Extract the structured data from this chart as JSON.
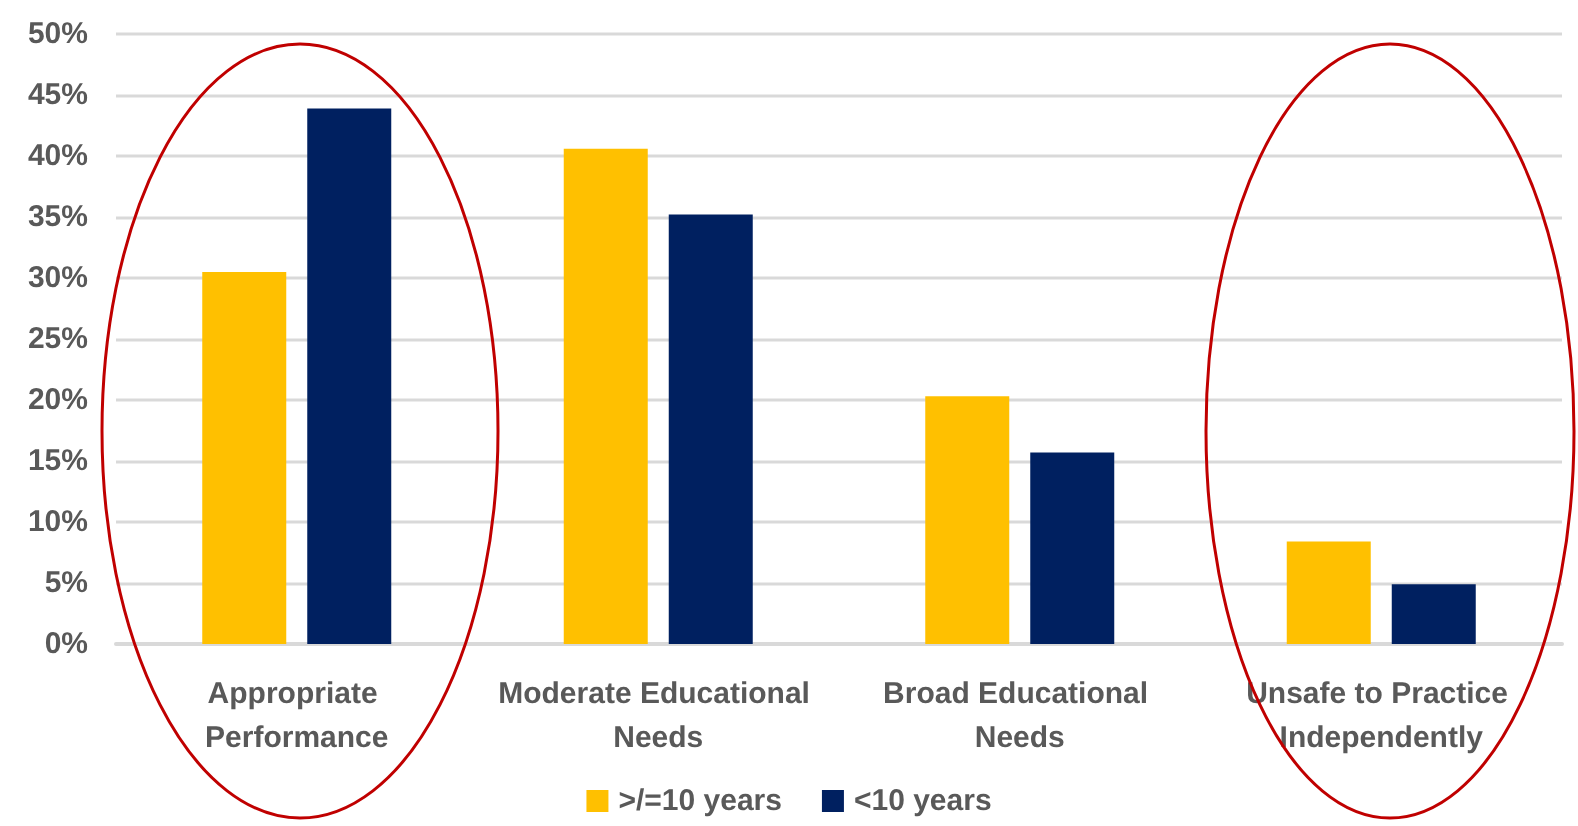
{
  "chart_data": {
    "type": "bar",
    "categories": [
      "Appropriate Performance",
      "Moderate Educational Needs",
      "Broad Educational Needs",
      "Unsafe to Practice Independently"
    ],
    "series": [
      {
        "name": ">/=10 years",
        "color": "#ffc000",
        "values": [
          30.5,
          40.6,
          20.3,
          8.4
        ]
      },
      {
        "name": "<10 years",
        "color": "#002060",
        "values": [
          43.9,
          35.2,
          15.7,
          4.9
        ]
      }
    ],
    "ylim": [
      0,
      50
    ],
    "yticks": [
      {
        "value": 0,
        "label": "0%"
      },
      {
        "value": 5,
        "label": "5%"
      },
      {
        "value": 10,
        "label": "10%"
      },
      {
        "value": 15,
        "label": "15%"
      },
      {
        "value": 20,
        "label": "20%"
      },
      {
        "value": 25,
        "label": "25%"
      },
      {
        "value": 30,
        "label": "30%"
      },
      {
        "value": 35,
        "label": "35%"
      },
      {
        "value": 40,
        "label": "40%"
      },
      {
        "value": 45,
        "label": "45%"
      },
      {
        "value": 50,
        "label": "50%"
      }
    ],
    "grid": "y",
    "legend": "bottom"
  }
}
